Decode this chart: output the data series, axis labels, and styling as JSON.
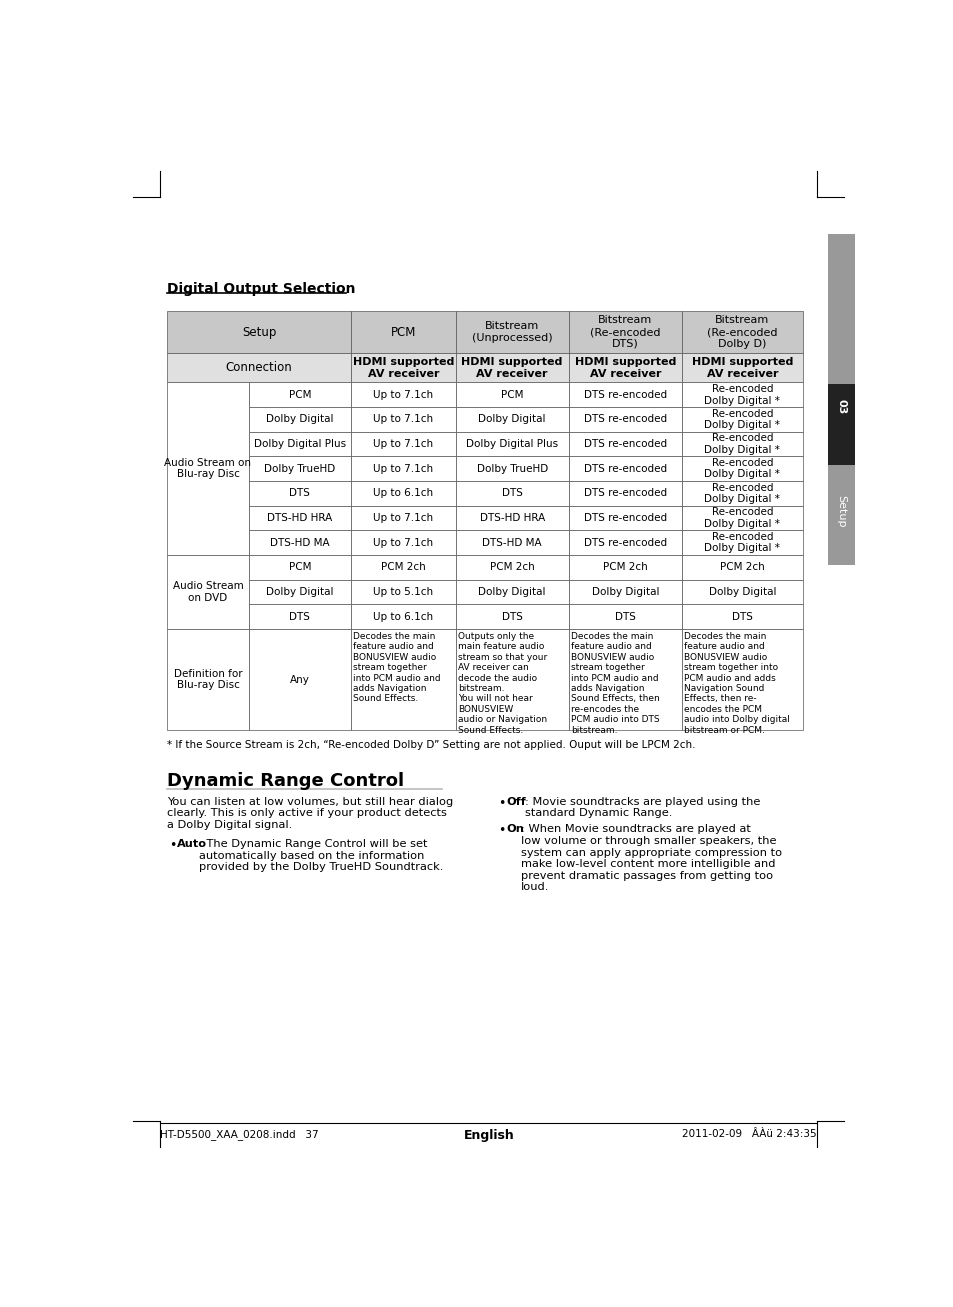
{
  "page_bg": "#ffffff",
  "title_section": "Digital Output Selection",
  "section_title2": "Dynamic Range Control",
  "footer_left": "HT-D5500_XAA_0208.indd   37",
  "footer_right": "2011-02-09   ÂÀü 2:43:35",
  "footer_center": "English",
  "footnote": "* If the Source Stream is 2ch, “Re-encoded Dolby D” Setting are not applied. Ouput will be LPCM 2ch.",
  "drc_intro": "You can listen at low volumes, but still hear dialog\nclearly. This is only active if your product detects\na Dolby Digital signal.",
  "table_header_bg": "#c8c8c8",
  "table_subheader_bg": "#e0e0e0",
  "table_row_bg": "#ffffff",
  "tab_top_bg": "#999999",
  "tab_mid_bg": "#222222",
  "tab_bot_bg": "#999999",
  "header_row": [
    "Setup",
    "PCM",
    "Bitstream\n(Unprocessed)",
    "Bitstream\n(Re-encoded\nDTS)",
    "Bitstream\n(Re-encoded\nDolby D)"
  ],
  "sub_header": [
    "Connection",
    "HDMI supported\nAV receiver",
    "HDMI supported\nAV receiver",
    "HDMI supported\nAV receiver",
    "HDMI supported\nAV receiver"
  ],
  "table_data": [
    {
      "group": "Audio Stream on\nBlu-ray Disc",
      "rows": [
        [
          "PCM",
          "Up to 7.1ch",
          "PCM",
          "DTS re-encoded",
          "Re-encoded\nDolby Digital *"
        ],
        [
          "Dolby Digital",
          "Up to 7.1ch",
          "Dolby Digital",
          "DTS re-encoded",
          "Re-encoded\nDolby Digital *"
        ],
        [
          "Dolby Digital Plus",
          "Up to 7.1ch",
          "Dolby Digital Plus",
          "DTS re-encoded",
          "Re-encoded\nDolby Digital *"
        ],
        [
          "Dolby TrueHD",
          "Up to 7.1ch",
          "Dolby TrueHD",
          "DTS re-encoded",
          "Re-encoded\nDolby Digital *"
        ],
        [
          "DTS",
          "Up to 6.1ch",
          "DTS",
          "DTS re-encoded",
          "Re-encoded\nDolby Digital *"
        ],
        [
          "DTS-HD HRA",
          "Up to 7.1ch",
          "DTS-HD HRA",
          "DTS re-encoded",
          "Re-encoded\nDolby Digital *"
        ],
        [
          "DTS-HD MA",
          "Up to 7.1ch",
          "DTS-HD MA",
          "DTS re-encoded",
          "Re-encoded\nDolby Digital *"
        ]
      ]
    },
    {
      "group": "Audio Stream\non DVD",
      "rows": [
        [
          "PCM",
          "PCM 2ch",
          "PCM 2ch",
          "PCM 2ch",
          "PCM 2ch"
        ],
        [
          "Dolby Digital",
          "Up to 5.1ch",
          "Dolby Digital",
          "Dolby Digital",
          "Dolby Digital"
        ],
        [
          "DTS",
          "Up to 6.1ch",
          "DTS",
          "DTS",
          "DTS"
        ]
      ]
    },
    {
      "group": "Definition for\nBlu-ray Disc",
      "rows": [
        [
          "Any",
          "Decodes the main\nfeature audio and\nBONUSVIEW audio\nstream together\ninto PCM audio and\nadds Navigation\nSound Effects.",
          "Outputs only the\nmain feature audio\nstream so that your\nAV receiver can\ndecode the audio\nbitstream.\nYou will not hear\nBONUSVIEW\naudio or Navigation\nSound Effects.",
          "Decodes the main\nfeature audio and\nBONUSVIEW audio\nstream together\ninto PCM audio and\nadds Navigation\nSound Effects, then\nre-encodes the\nPCM audio into DTS\nbitstream.",
          "Decodes the main\nfeature audio and\nBONUSVIEW audio\nstream together into\nPCM audio and adds\nNavigation Sound\nEffects, then re-\nencodes the PCM\naudio into Dolby digital\nbitstream or PCM."
        ]
      ]
    }
  ]
}
